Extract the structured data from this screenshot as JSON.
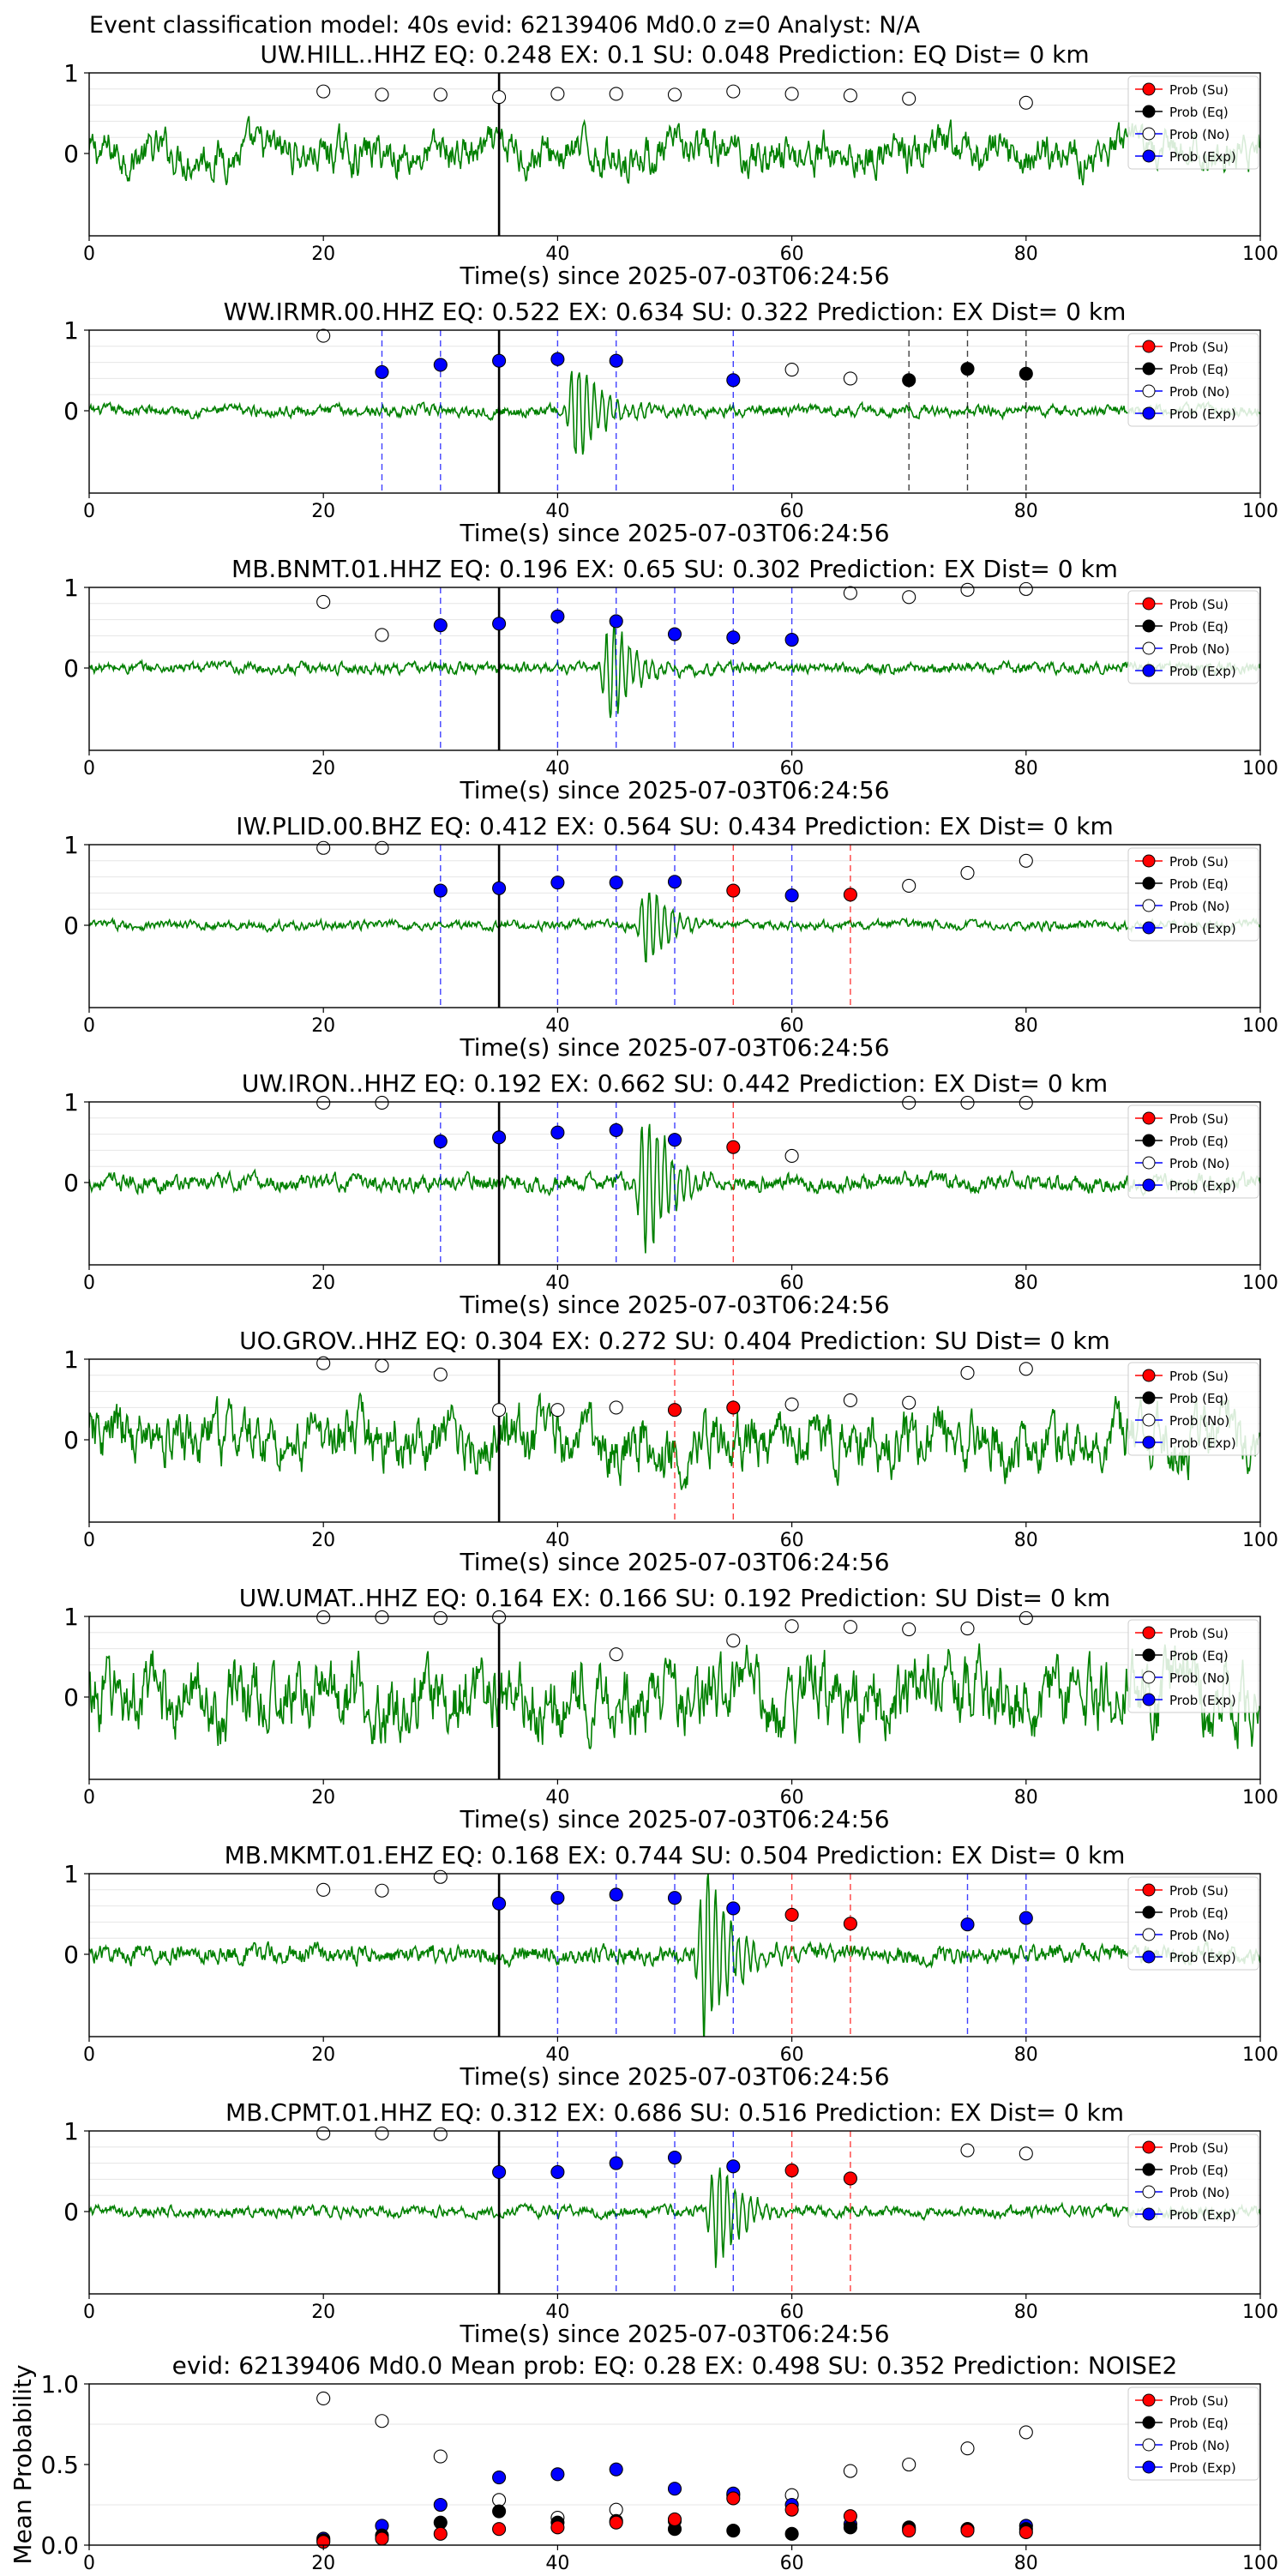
{
  "figure": {
    "suptitle": "Event classification model: 40s evid: 62139406 Md0.0 z=0 Analyst: N/A",
    "xlabel": "Time(s) since 2025-07-03T06:24:56",
    "legend": [
      "Prob (Su)",
      "Prob (Eq)",
      "Prob (No)",
      "Prob (Exp)"
    ],
    "colors": {
      "su": "#ff0000",
      "eq": "#000000",
      "no": "#ffffff",
      "exp": "#0000ff",
      "waveform": "#008000",
      "origin_line": "#000000"
    }
  },
  "chart_data": [
    {
      "type": "line",
      "title": "UW.HILL..HHZ   EQ: 0.248  EX: 0.1  SU: 0.048   Prediction: EQ    Dist= 0 km",
      "xlim": [
        0,
        100
      ],
      "ylim_label": [
        0,
        1
      ],
      "xticks": [
        0,
        20,
        40,
        60,
        80,
        100
      ],
      "yticks": [
        0,
        1
      ],
      "origin_time": 35,
      "noise_level": 0.22,
      "points": [
        {
          "x": 20,
          "y": 0.77,
          "c": "no"
        },
        {
          "x": 25,
          "y": 0.73,
          "c": "no"
        },
        {
          "x": 30,
          "y": 0.73,
          "c": "no"
        },
        {
          "x": 35,
          "y": 0.7,
          "c": "no"
        },
        {
          "x": 40,
          "y": 0.74,
          "c": "no"
        },
        {
          "x": 45,
          "y": 0.74,
          "c": "no"
        },
        {
          "x": 50,
          "y": 0.73,
          "c": "no"
        },
        {
          "x": 55,
          "y": 0.77,
          "c": "no"
        },
        {
          "x": 60,
          "y": 0.74,
          "c": "no"
        },
        {
          "x": 65,
          "y": 0.72,
          "c": "no"
        },
        {
          "x": 70,
          "y": 0.68,
          "c": "no"
        },
        {
          "x": 80,
          "y": 0.63,
          "c": "no"
        }
      ],
      "vlines": []
    },
    {
      "type": "line",
      "title": "WW.IRMR.00.HHZ   EQ: 0.522  EX: 0.634  SU: 0.322   Prediction: EX    Dist= 0 km",
      "xlim": [
        0,
        100
      ],
      "ylim_label": [
        0,
        1
      ],
      "xticks": [
        0,
        20,
        40,
        60,
        80,
        100
      ],
      "yticks": [
        0,
        1
      ],
      "origin_time": 35,
      "noise_level": 0.06,
      "event_time": 41,
      "points": [
        {
          "x": 20,
          "y": 0.93,
          "c": "no"
        },
        {
          "x": 25,
          "y": 0.48,
          "c": "exp"
        },
        {
          "x": 30,
          "y": 0.57,
          "c": "exp"
        },
        {
          "x": 35,
          "y": 0.62,
          "c": "exp"
        },
        {
          "x": 40,
          "y": 0.64,
          "c": "exp"
        },
        {
          "x": 45,
          "y": 0.62,
          "c": "exp"
        },
        {
          "x": 55,
          "y": 0.38,
          "c": "exp"
        },
        {
          "x": 60,
          "y": 0.51,
          "c": "no"
        },
        {
          "x": 65,
          "y": 0.4,
          "c": "no"
        },
        {
          "x": 70,
          "y": 0.38,
          "c": "eq"
        },
        {
          "x": 75,
          "y": 0.52,
          "c": "eq"
        },
        {
          "x": 80,
          "y": 0.46,
          "c": "eq"
        }
      ],
      "vlines": [
        {
          "x": 25,
          "c": "exp"
        },
        {
          "x": 30,
          "c": "exp"
        },
        {
          "x": 40,
          "c": "exp"
        },
        {
          "x": 45,
          "c": "exp"
        },
        {
          "x": 55,
          "c": "exp"
        },
        {
          "x": 70,
          "c": "eq"
        },
        {
          "x": 75,
          "c": "eq"
        },
        {
          "x": 80,
          "c": "eq"
        }
      ]
    },
    {
      "type": "line",
      "title": "MB.BNMT.01.HHZ   EQ: 0.196  EX: 0.65  SU: 0.302   Prediction: EX    Dist= 0 km",
      "xlim": [
        0,
        100
      ],
      "ylim_label": [
        0,
        1
      ],
      "xticks": [
        0,
        20,
        40,
        60,
        80,
        100
      ],
      "yticks": [
        0,
        1
      ],
      "origin_time": 35,
      "noise_level": 0.06,
      "event_time": 44,
      "points": [
        {
          "x": 20,
          "y": 0.82,
          "c": "no"
        },
        {
          "x": 25,
          "y": 0.41,
          "c": "no"
        },
        {
          "x": 30,
          "y": 0.53,
          "c": "exp"
        },
        {
          "x": 35,
          "y": 0.55,
          "c": "exp"
        },
        {
          "x": 40,
          "y": 0.64,
          "c": "exp"
        },
        {
          "x": 45,
          "y": 0.58,
          "c": "exp"
        },
        {
          "x": 50,
          "y": 0.42,
          "c": "exp"
        },
        {
          "x": 55,
          "y": 0.38,
          "c": "exp"
        },
        {
          "x": 60,
          "y": 0.35,
          "c": "exp"
        },
        {
          "x": 65,
          "y": 0.93,
          "c": "no"
        },
        {
          "x": 70,
          "y": 0.88,
          "c": "no"
        },
        {
          "x": 75,
          "y": 0.97,
          "c": "no"
        },
        {
          "x": 80,
          "y": 0.98,
          "c": "no"
        }
      ],
      "vlines": [
        {
          "x": 30,
          "c": "exp"
        },
        {
          "x": 40,
          "c": "exp"
        },
        {
          "x": 45,
          "c": "exp"
        },
        {
          "x": 50,
          "c": "exp"
        },
        {
          "x": 55,
          "c": "exp"
        },
        {
          "x": 60,
          "c": "exp"
        }
      ]
    },
    {
      "type": "line",
      "title": "IW.PLID.00.BHZ   EQ: 0.412  EX: 0.564  SU: 0.434   Prediction: EX    Dist= 0 km",
      "xlim": [
        0,
        100
      ],
      "ylim_label": [
        0,
        1
      ],
      "xticks": [
        0,
        20,
        40,
        60,
        80,
        100
      ],
      "yticks": [
        0,
        1
      ],
      "origin_time": 35,
      "noise_level": 0.05,
      "event_time": 47,
      "points": [
        {
          "x": 20,
          "y": 0.96,
          "c": "no"
        },
        {
          "x": 25,
          "y": 0.96,
          "c": "no"
        },
        {
          "x": 30,
          "y": 0.43,
          "c": "exp"
        },
        {
          "x": 35,
          "y": 0.46,
          "c": "exp"
        },
        {
          "x": 40,
          "y": 0.53,
          "c": "exp"
        },
        {
          "x": 45,
          "y": 0.53,
          "c": "exp"
        },
        {
          "x": 50,
          "y": 0.54,
          "c": "exp"
        },
        {
          "x": 55,
          "y": 0.43,
          "c": "su"
        },
        {
          "x": 60,
          "y": 0.37,
          "c": "exp"
        },
        {
          "x": 65,
          "y": 0.38,
          "c": "su"
        },
        {
          "x": 70,
          "y": 0.49,
          "c": "no"
        },
        {
          "x": 75,
          "y": 0.65,
          "c": "no"
        },
        {
          "x": 80,
          "y": 0.8,
          "c": "no"
        }
      ],
      "vlines": [
        {
          "x": 30,
          "c": "exp"
        },
        {
          "x": 40,
          "c": "exp"
        },
        {
          "x": 45,
          "c": "exp"
        },
        {
          "x": 50,
          "c": "exp"
        },
        {
          "x": 55,
          "c": "su"
        },
        {
          "x": 60,
          "c": "exp"
        },
        {
          "x": 65,
          "c": "su"
        }
      ]
    },
    {
      "type": "line",
      "title": "UW.IRON..HHZ   EQ: 0.192  EX: 0.662  SU: 0.442   Prediction: EX    Dist= 0 km",
      "xlim": [
        0,
        100
      ],
      "ylim_label": [
        0,
        1
      ],
      "xticks": [
        0,
        20,
        40,
        60,
        80,
        100
      ],
      "yticks": [
        0,
        1
      ],
      "origin_time": 35,
      "noise_level": 0.09,
      "event_time": 47,
      "points": [
        {
          "x": 20,
          "y": 0.99,
          "c": "no"
        },
        {
          "x": 25,
          "y": 0.99,
          "c": "no"
        },
        {
          "x": 30,
          "y": 0.51,
          "c": "exp"
        },
        {
          "x": 35,
          "y": 0.56,
          "c": "exp"
        },
        {
          "x": 40,
          "y": 0.62,
          "c": "exp"
        },
        {
          "x": 45,
          "y": 0.65,
          "c": "exp"
        },
        {
          "x": 50,
          "y": 0.53,
          "c": "exp"
        },
        {
          "x": 55,
          "y": 0.44,
          "c": "su"
        },
        {
          "x": 60,
          "y": 0.33,
          "c": "no"
        },
        {
          "x": 70,
          "y": 0.99,
          "c": "no"
        },
        {
          "x": 75,
          "y": 0.99,
          "c": "no"
        },
        {
          "x": 80,
          "y": 0.99,
          "c": "no"
        }
      ],
      "vlines": [
        {
          "x": 30,
          "c": "exp"
        },
        {
          "x": 40,
          "c": "exp"
        },
        {
          "x": 45,
          "c": "exp"
        },
        {
          "x": 50,
          "c": "exp"
        },
        {
          "x": 55,
          "c": "su"
        }
      ]
    },
    {
      "type": "line",
      "title": "UO.GROV..HHZ   EQ: 0.304  EX: 0.272  SU: 0.404   Prediction: SU    Dist= 0 km",
      "xlim": [
        0,
        100
      ],
      "ylim_label": [
        0,
        1
      ],
      "xticks": [
        0,
        20,
        40,
        60,
        80,
        100
      ],
      "yticks": [
        0,
        1
      ],
      "origin_time": 35,
      "noise_level": 0.32,
      "points": [
        {
          "x": 20,
          "y": 0.95,
          "c": "no"
        },
        {
          "x": 25,
          "y": 0.92,
          "c": "no"
        },
        {
          "x": 30,
          "y": 0.81,
          "c": "no"
        },
        {
          "x": 35,
          "y": 0.37,
          "c": "no"
        },
        {
          "x": 40,
          "y": 0.37,
          "c": "no"
        },
        {
          "x": 45,
          "y": 0.4,
          "c": "no"
        },
        {
          "x": 50,
          "y": 0.37,
          "c": "su"
        },
        {
          "x": 55,
          "y": 0.4,
          "c": "su"
        },
        {
          "x": 60,
          "y": 0.44,
          "c": "no"
        },
        {
          "x": 65,
          "y": 0.49,
          "c": "no"
        },
        {
          "x": 70,
          "y": 0.46,
          "c": "no"
        },
        {
          "x": 75,
          "y": 0.83,
          "c": "no"
        },
        {
          "x": 80,
          "y": 0.88,
          "c": "no"
        }
      ],
      "vlines": [
        {
          "x": 50,
          "c": "su"
        },
        {
          "x": 55,
          "c": "su"
        }
      ]
    },
    {
      "type": "line",
      "title": "UW.UMAT..HHZ   EQ: 0.164  EX: 0.166  SU: 0.192   Prediction: SU    Dist= 0 km",
      "xlim": [
        0,
        100
      ],
      "ylim_label": [
        0,
        1
      ],
      "xticks": [
        0,
        20,
        40,
        60,
        80,
        100
      ],
      "yticks": [
        0,
        1
      ],
      "origin_time": 35,
      "noise_level": 0.4,
      "points": [
        {
          "x": 20,
          "y": 0.99,
          "c": "no"
        },
        {
          "x": 25,
          "y": 0.99,
          "c": "no"
        },
        {
          "x": 30,
          "y": 0.98,
          "c": "no"
        },
        {
          "x": 35,
          "y": 0.99,
          "c": "no"
        },
        {
          "x": 45,
          "y": 0.53,
          "c": "no"
        },
        {
          "x": 55,
          "y": 0.7,
          "c": "no"
        },
        {
          "x": 60,
          "y": 0.88,
          "c": "no"
        },
        {
          "x": 65,
          "y": 0.87,
          "c": "no"
        },
        {
          "x": 70,
          "y": 0.84,
          "c": "no"
        },
        {
          "x": 75,
          "y": 0.85,
          "c": "no"
        },
        {
          "x": 80,
          "y": 0.98,
          "c": "no"
        }
      ],
      "vlines": []
    },
    {
      "type": "line",
      "title": "MB.MKMT.01.EHZ   EQ: 0.168  EX: 0.744  SU: 0.504   Prediction: EX    Dist= 0 km",
      "xlim": [
        0,
        100
      ],
      "ylim_label": [
        0,
        1
      ],
      "xticks": [
        0,
        20,
        40,
        60,
        80,
        100
      ],
      "yticks": [
        0,
        1
      ],
      "origin_time": 35,
      "noise_level": 0.1,
      "event_time": 52,
      "points": [
        {
          "x": 20,
          "y": 0.8,
          "c": "no"
        },
        {
          "x": 25,
          "y": 0.79,
          "c": "no"
        },
        {
          "x": 30,
          "y": 0.96,
          "c": "no"
        },
        {
          "x": 35,
          "y": 0.63,
          "c": "exp"
        },
        {
          "x": 40,
          "y": 0.7,
          "c": "exp"
        },
        {
          "x": 45,
          "y": 0.74,
          "c": "exp"
        },
        {
          "x": 50,
          "y": 0.7,
          "c": "exp"
        },
        {
          "x": 55,
          "y": 0.57,
          "c": "exp"
        },
        {
          "x": 60,
          "y": 0.49,
          "c": "su"
        },
        {
          "x": 65,
          "y": 0.38,
          "c": "su"
        },
        {
          "x": 75,
          "y": 0.37,
          "c": "exp"
        },
        {
          "x": 80,
          "y": 0.45,
          "c": "exp"
        }
      ],
      "vlines": [
        {
          "x": 40,
          "c": "exp"
        },
        {
          "x": 45,
          "c": "exp"
        },
        {
          "x": 50,
          "c": "exp"
        },
        {
          "x": 55,
          "c": "exp"
        },
        {
          "x": 60,
          "c": "su"
        },
        {
          "x": 65,
          "c": "su"
        },
        {
          "x": 75,
          "c": "exp"
        },
        {
          "x": 80,
          "c": "exp"
        }
      ]
    },
    {
      "type": "line",
      "title": "MB.CPMT.01.HHZ   EQ: 0.312  EX: 0.686  SU: 0.516   Prediction: EX    Dist= 0 km",
      "xlim": [
        0,
        100
      ],
      "ylim_label": [
        0,
        1
      ],
      "xticks": [
        0,
        20,
        40,
        60,
        80,
        100
      ],
      "yticks": [
        0,
        1
      ],
      "origin_time": 35,
      "noise_level": 0.06,
      "event_time": 53,
      "points": [
        {
          "x": 20,
          "y": 0.97,
          "c": "no"
        },
        {
          "x": 25,
          "y": 0.97,
          "c": "no"
        },
        {
          "x": 30,
          "y": 0.96,
          "c": "no"
        },
        {
          "x": 35,
          "y": 0.49,
          "c": "exp"
        },
        {
          "x": 40,
          "y": 0.49,
          "c": "exp"
        },
        {
          "x": 45,
          "y": 0.6,
          "c": "exp"
        },
        {
          "x": 50,
          "y": 0.67,
          "c": "exp"
        },
        {
          "x": 55,
          "y": 0.56,
          "c": "exp"
        },
        {
          "x": 60,
          "y": 0.51,
          "c": "su"
        },
        {
          "x": 65,
          "y": 0.41,
          "c": "su"
        },
        {
          "x": 75,
          "y": 0.76,
          "c": "no"
        },
        {
          "x": 80,
          "y": 0.72,
          "c": "no"
        }
      ],
      "vlines": [
        {
          "x": 40,
          "c": "exp"
        },
        {
          "x": 45,
          "c": "exp"
        },
        {
          "x": 50,
          "c": "exp"
        },
        {
          "x": 55,
          "c": "exp"
        },
        {
          "x": 60,
          "c": "su"
        },
        {
          "x": 65,
          "c": "su"
        }
      ]
    },
    {
      "type": "scatter",
      "title": "evid: 62139406   Md0.0   Mean prob:    EQ: 0.28  EX: 0.498  SU: 0.352   Prediction: NOISE2",
      "ylabel": "Mean Probability",
      "xlim": [
        0,
        100
      ],
      "ylim": [
        0,
        1.0
      ],
      "xticks": [
        0,
        20,
        40,
        60,
        80,
        100
      ],
      "yticks": [
        "0.0",
        "0.5",
        "1.0"
      ],
      "x": [
        20,
        25,
        30,
        35,
        40,
        45,
        50,
        55,
        60,
        65,
        70,
        75,
        80
      ],
      "series": [
        {
          "c": "no",
          "values": [
            0.91,
            0.77,
            0.55,
            0.28,
            0.17,
            0.22,
            0.15,
            0.31,
            0.31,
            0.46,
            0.5,
            0.6,
            0.7
          ]
        },
        {
          "c": "exp",
          "values": [
            0.04,
            0.12,
            0.25,
            0.42,
            0.44,
            0.47,
            0.35,
            0.32,
            0.25,
            0.13,
            0.1,
            0.1,
            0.12
          ]
        },
        {
          "c": "eq",
          "values": [
            0.03,
            0.06,
            0.14,
            0.21,
            0.14,
            0.15,
            0.1,
            0.09,
            0.07,
            0.11,
            0.11,
            0.1,
            0.1
          ]
        },
        {
          "c": "su",
          "values": [
            0.02,
            0.04,
            0.07,
            0.1,
            0.11,
            0.14,
            0.16,
            0.29,
            0.22,
            0.18,
            0.09,
            0.09,
            0.08
          ]
        }
      ]
    }
  ]
}
